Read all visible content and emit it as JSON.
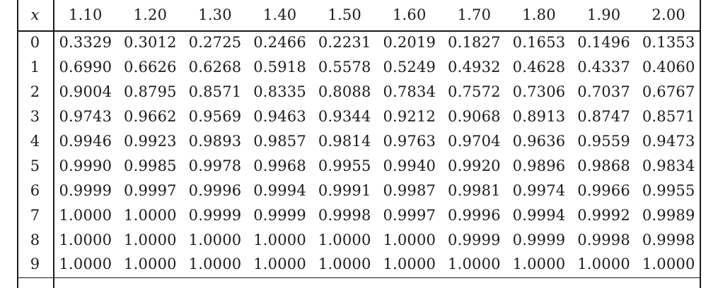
{
  "table": {
    "corner_label": "x",
    "columns": [
      "1.10",
      "1.20",
      "1.30",
      "1.40",
      "1.50",
      "1.60",
      "1.70",
      "1.80",
      "1.90",
      "2.00"
    ],
    "rows": [
      {
        "x": "0",
        "values": [
          "0.3329",
          "0.3012",
          "0.2725",
          "0.2466",
          "0.2231",
          "0.2019",
          "0.1827",
          "0.1653",
          "0.1496",
          "0.1353"
        ]
      },
      {
        "x": "1",
        "values": [
          "0.6990",
          "0.6626",
          "0.6268",
          "0.5918",
          "0.5578",
          "0.5249",
          "0.4932",
          "0.4628",
          "0.4337",
          "0.4060"
        ]
      },
      {
        "x": "2",
        "values": [
          "0.9004",
          "0.8795",
          "0.8571",
          "0.8335",
          "0.8088",
          "0.7834",
          "0.7572",
          "0.7306",
          "0.7037",
          "0.6767"
        ]
      },
      {
        "x": "3",
        "values": [
          "0.9743",
          "0.9662",
          "0.9569",
          "0.9463",
          "0.9344",
          "0.9212",
          "0.9068",
          "0.8913",
          "0.8747",
          "0.8571"
        ]
      },
      {
        "x": "4",
        "values": [
          "0.9946",
          "0.9923",
          "0.9893",
          "0.9857",
          "0.9814",
          "0.9763",
          "0.9704",
          "0.9636",
          "0.9559",
          "0.9473"
        ]
      },
      {
        "x": "5",
        "values": [
          "0.9990",
          "0.9985",
          "0.9978",
          "0.9968",
          "0.9955",
          "0.9940",
          "0.9920",
          "0.9896",
          "0.9868",
          "0.9834"
        ]
      },
      {
        "x": "6",
        "values": [
          "0.9999",
          "0.9997",
          "0.9996",
          "0.9994",
          "0.9991",
          "0.9987",
          "0.9981",
          "0.9974",
          "0.9966",
          "0.9955"
        ]
      },
      {
        "x": "7",
        "values": [
          "1.0000",
          "1.0000",
          "0.9999",
          "0.9999",
          "0.9998",
          "0.9997",
          "0.9996",
          "0.9994",
          "0.9992",
          "0.9989"
        ]
      },
      {
        "x": "8",
        "values": [
          "1.0000",
          "1.0000",
          "1.0000",
          "1.0000",
          "1.0000",
          "1.0000",
          "0.9999",
          "0.9999",
          "0.9998",
          "0.9998"
        ]
      },
      {
        "x": "9",
        "values": [
          "1.0000",
          "1.0000",
          "1.0000",
          "1.0000",
          "1.0000",
          "1.0000",
          "1.0000",
          "1.0000",
          "1.0000",
          "1.0000"
        ]
      }
    ],
    "colors": {
      "text": "#1b1b1b",
      "rule": "#1a1a1a",
      "background": "#ffffff"
    }
  }
}
